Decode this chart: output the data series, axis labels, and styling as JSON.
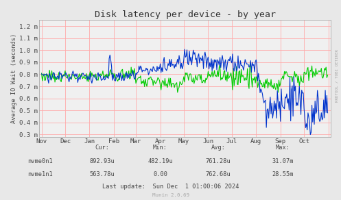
{
  "title": "Disk latency per device - by year",
  "ylabel": "Average IO Wait (seconds)",
  "right_label": "RRDTOOL / TOBI OETIKER",
  "bg_color": "#e8e8e8",
  "plot_bg_color": "#f0f0f0",
  "grid_color": "#ffaaaa",
  "line1_color": "#00cc00",
  "line2_color": "#0033cc",
  "line1_label": "nvme0n1",
  "line2_label": "nvme1n1",
  "ylim": [
    0.28,
    1.25
  ],
  "yticks": [
    0.3,
    0.4,
    0.5,
    0.6,
    0.7,
    0.8,
    0.9,
    1.0,
    1.1,
    1.2
  ],
  "ytick_labels": [
    "0.3 m",
    "0.4 m",
    "0.5 m",
    "0.6 m",
    "0.7 m",
    "0.8 m",
    "0.9 m",
    "1.0 m",
    "1.1 m",
    "1.2 m"
  ],
  "month_labels": [
    "Nov",
    "Dec",
    "Jan",
    "Feb",
    "Mar",
    "Apr",
    "May",
    "Jun",
    "Jul",
    "Aug",
    "Sep",
    "Oct",
    "Nov"
  ],
  "month_positions": [
    0,
    30,
    61,
    92,
    120,
    151,
    181,
    212,
    242,
    273,
    304,
    334,
    365
  ],
  "cur1": "892.93u",
  "min1": "482.19u",
  "avg1": "761.28u",
  "max1": "31.07m",
  "cur2": "563.78u",
  "min2": "0.00",
  "avg2": "762.68u",
  "max2": "28.55m",
  "last_update": "Last update:  Sun Dec  1 01:00:06 2024",
  "munin_version": "Munin 2.0.69",
  "npoints": 365
}
